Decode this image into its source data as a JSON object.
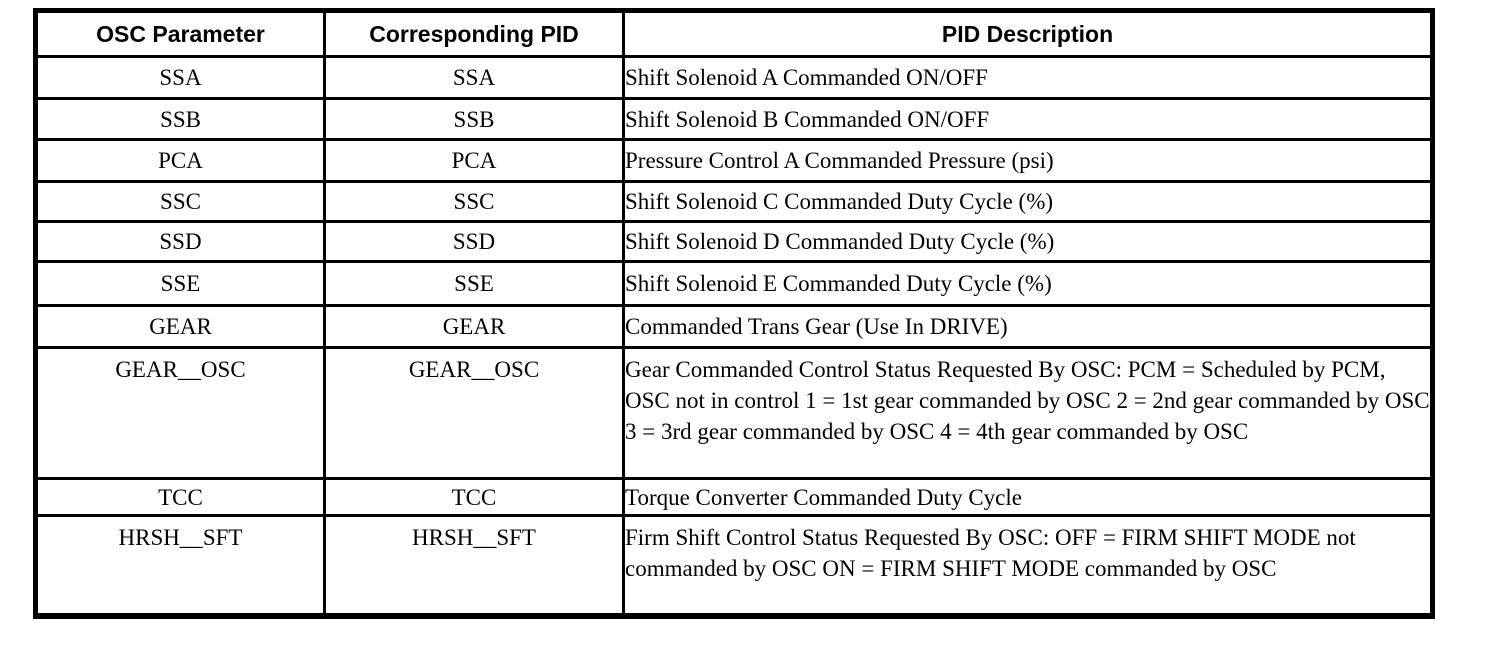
{
  "table": {
    "columns": [
      "OSC Parameter",
      "Corresponding PID",
      "PID Description"
    ],
    "rows": [
      {
        "param": "SSA",
        "pid": "SSA",
        "desc": "Shift Solenoid A Commanded ON/OFF"
      },
      {
        "param": "SSB",
        "pid": "SSB",
        "desc": "Shift Solenoid B Commanded ON/OFF"
      },
      {
        "param": "PCA",
        "pid": "PCA",
        "desc": "Pressure Control A Commanded Pressure (psi)"
      },
      {
        "param": "SSC",
        "pid": "SSC",
        "desc": "Shift Solenoid C Commanded Duty Cycle (%)"
      },
      {
        "param": "SSD",
        "pid": "SSD",
        "desc": "Shift Solenoid D Commanded Duty Cycle (%)"
      },
      {
        "param": "SSE",
        "pid": "SSE",
        "desc": "Shift Solenoid E Commanded Duty Cycle (%)"
      },
      {
        "param": "GEAR",
        "pid": "GEAR",
        "desc": "Commanded Trans Gear (Use In DRIVE)"
      },
      {
        "param": "GEAR__OSC",
        "pid": "GEAR__OSC",
        "desc": "Gear Commanded Control Status Requested By OSC: PCM = Scheduled by PCM, OSC not in control 1 = 1st gear commanded by OSC 2 = 2nd gear commanded by OSC 3 = 3rd gear commanded by OSC 4 = 4th gear commanded by OSC"
      },
      {
        "param": "TCC",
        "pid": "TCC",
        "desc": "Torque Converter Commanded Duty Cycle"
      },
      {
        "param": "HRSH__SFT",
        "pid": "HRSH__SFT",
        "desc": "Firm Shift Control Status Requested By OSC: OFF = FIRM SHIFT MODE not commanded by OSC ON = FIRM SHIFT MODE commanded by OSC"
      }
    ]
  }
}
